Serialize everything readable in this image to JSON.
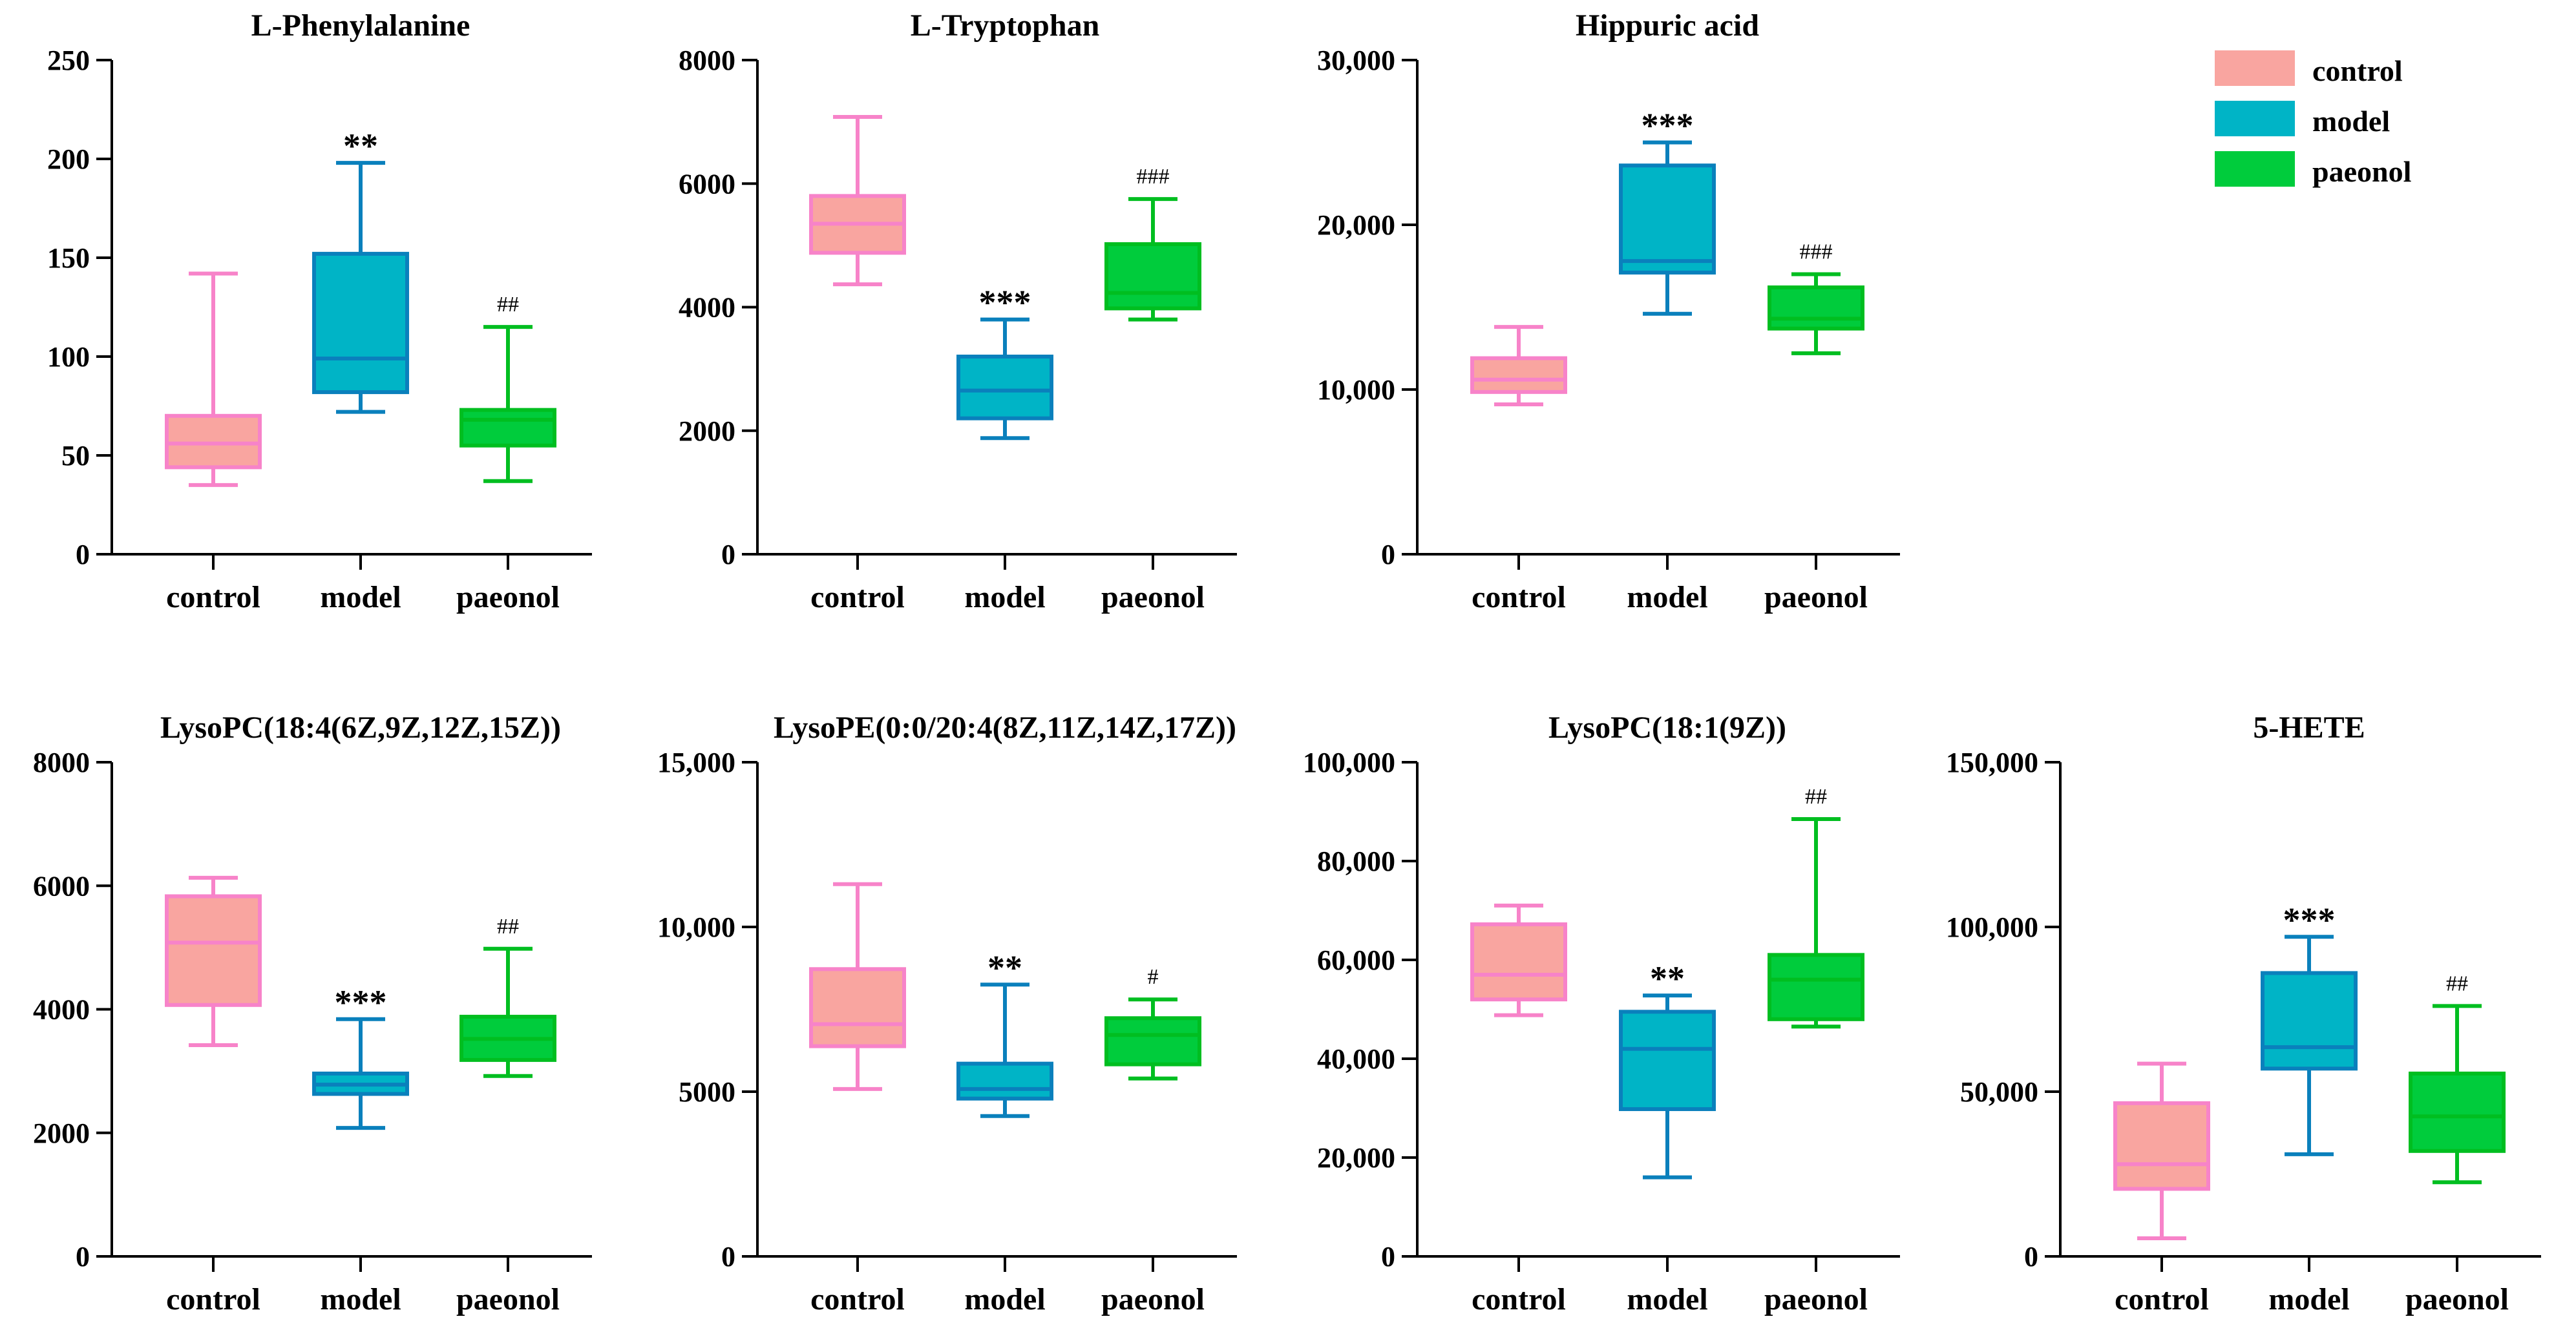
{
  "chart_data": [
    {
      "type": "box",
      "title": "L-Phenylalanine",
      "categories": [
        "control",
        "model",
        "paeonol"
      ],
      "yticks": [
        0,
        50,
        100,
        150,
        200,
        250
      ],
      "tick_labels": [
        "0",
        "50",
        "100",
        "150",
        "200",
        "250"
      ],
      "ylim": [
        0,
        250
      ],
      "boxes": [
        {
          "group": "control",
          "min": 35,
          "q1": 44,
          "median": 56,
          "q3": 70,
          "max": 142,
          "sig": ""
        },
        {
          "group": "model",
          "min": 72,
          "q1": 82,
          "median": 99,
          "q3": 152,
          "max": 198,
          "sig": "**"
        },
        {
          "group": "paeonol",
          "min": 37,
          "q1": 55,
          "median": 68,
          "q3": 73,
          "max": 115,
          "sig": "##"
        }
      ]
    },
    {
      "type": "box",
      "title": "L-Tryptophan",
      "categories": [
        "control",
        "model",
        "paeonol"
      ],
      "yticks": [
        0,
        2000,
        4000,
        6000,
        8000
      ],
      "tick_labels": [
        "0",
        "2000",
        "4000",
        "6000",
        "8000"
      ],
      "ylim": [
        0,
        8000
      ],
      "boxes": [
        {
          "group": "control",
          "min": 4370,
          "q1": 4880,
          "median": 5350,
          "q3": 5800,
          "max": 7080,
          "sig": ""
        },
        {
          "group": "model",
          "min": 1880,
          "q1": 2200,
          "median": 2650,
          "q3": 3200,
          "max": 3800,
          "sig": "***"
        },
        {
          "group": "paeonol",
          "min": 3800,
          "q1": 3980,
          "median": 4230,
          "q3": 5020,
          "max": 5750,
          "sig": "###"
        }
      ]
    },
    {
      "type": "box",
      "title": "Hippuric acid",
      "categories": [
        "control",
        "model",
        "paeonol"
      ],
      "yticks": [
        0,
        10000,
        20000,
        30000
      ],
      "tick_labels": [
        "0",
        "10,000",
        "20,000",
        "30,000"
      ],
      "ylim": [
        0,
        30000
      ],
      "boxes": [
        {
          "group": "control",
          "min": 9100,
          "q1": 9850,
          "median": 10600,
          "q3": 11900,
          "max": 13800,
          "sig": ""
        },
        {
          "group": "model",
          "min": 14600,
          "q1": 17100,
          "median": 17800,
          "q3": 23600,
          "max": 25000,
          "sig": "***"
        },
        {
          "group": "paeonol",
          "min": 12200,
          "q1": 13700,
          "median": 14300,
          "q3": 16200,
          "max": 17000,
          "sig": "###"
        }
      ]
    },
    {
      "type": "box",
      "title": "LysoPC(18:4(6Z,9Z,12Z,15Z))",
      "categories": [
        "control",
        "model",
        "paeonol"
      ],
      "yticks": [
        0,
        2000,
        4000,
        6000,
        8000
      ],
      "tick_labels": [
        "0",
        "2000",
        "4000",
        "6000",
        "8000"
      ],
      "ylim": [
        0,
        8000
      ],
      "boxes": [
        {
          "group": "control",
          "min": 3420,
          "q1": 4070,
          "median": 5080,
          "q3": 5830,
          "max": 6130,
          "sig": ""
        },
        {
          "group": "model",
          "min": 2080,
          "q1": 2630,
          "median": 2780,
          "q3": 2960,
          "max": 3840,
          "sig": "***"
        },
        {
          "group": "paeonol",
          "min": 2920,
          "q1": 3180,
          "median": 3520,
          "q3": 3880,
          "max": 4980,
          "sig": "##"
        }
      ]
    },
    {
      "type": "box",
      "title": "LysoPE(0:0/20:4(8Z,11Z,14Z,17Z))",
      "categories": [
        "control",
        "model",
        "paeonol"
      ],
      "yticks": [
        0,
        5000,
        10000,
        15000
      ],
      "tick_labels": [
        "0",
        "5000",
        "10,000",
        "15,000"
      ],
      "ylim": [
        0,
        15000
      ],
      "boxes": [
        {
          "group": "control",
          "min": 5080,
          "q1": 6380,
          "median": 7050,
          "q3": 8720,
          "max": 11300,
          "sig": ""
        },
        {
          "group": "model",
          "min": 4260,
          "q1": 4790,
          "median": 5080,
          "q3": 5850,
          "max": 8250,
          "sig": "**"
        },
        {
          "group": "paeonol",
          "min": 5400,
          "q1": 5830,
          "median": 6720,
          "q3": 7230,
          "max": 7800,
          "sig": "#"
        }
      ]
    },
    {
      "type": "box",
      "title": "LysoPC(18:1(9Z))",
      "categories": [
        "control",
        "model",
        "paeonol"
      ],
      "yticks": [
        0,
        20000,
        40000,
        60000,
        80000,
        100000
      ],
      "tick_labels": [
        "0",
        "20,000",
        "40,000",
        "60,000",
        "80,000",
        "100,000"
      ],
      "ylim": [
        0,
        100000
      ],
      "boxes": [
        {
          "group": "control",
          "min": 48800,
          "q1": 52000,
          "median": 57000,
          "q3": 67200,
          "max": 71000,
          "sig": ""
        },
        {
          "group": "model",
          "min": 16000,
          "q1": 29800,
          "median": 42000,
          "q3": 49500,
          "max": 52800,
          "sig": "**"
        },
        {
          "group": "paeonol",
          "min": 46500,
          "q1": 48000,
          "median": 56000,
          "q3": 61000,
          "max": 88500,
          "sig": "##"
        }
      ]
    },
    {
      "type": "box",
      "title": "5-HETE",
      "categories": [
        "control",
        "model",
        "paeonol"
      ],
      "yticks": [
        0,
        50000,
        100000,
        150000
      ],
      "tick_labels": [
        "0",
        "50,000",
        "100,000",
        "150,000"
      ],
      "ylim": [
        0,
        150000
      ],
      "boxes": [
        {
          "group": "control",
          "min": 5500,
          "q1": 20500,
          "median": 28000,
          "q3": 46500,
          "max": 58500,
          "sig": ""
        },
        {
          "group": "model",
          "min": 31000,
          "q1": 57000,
          "median": 63500,
          "q3": 86000,
          "max": 97000,
          "sig": "***"
        },
        {
          "group": "paeonol",
          "min": 22500,
          "q1": 32000,
          "median": 42500,
          "q3": 55500,
          "max": 76000,
          "sig": "##"
        }
      ]
    }
  ],
  "legend": {
    "placement": "top-right",
    "items": [
      {
        "label": "control",
        "color": "#F9A5A0"
      },
      {
        "label": "model",
        "color": "#00B4C6"
      },
      {
        "label": "paeonol",
        "color": "#00CC3C"
      }
    ]
  },
  "colors": {
    "control": {
      "fill": "#F9A5A0",
      "stroke": "#F783C9"
    },
    "model": {
      "fill": "#00B4C6",
      "stroke": "#0A80BC"
    },
    "paeonol": {
      "fill": "#00CC3C",
      "stroke": "#00BE20"
    }
  }
}
